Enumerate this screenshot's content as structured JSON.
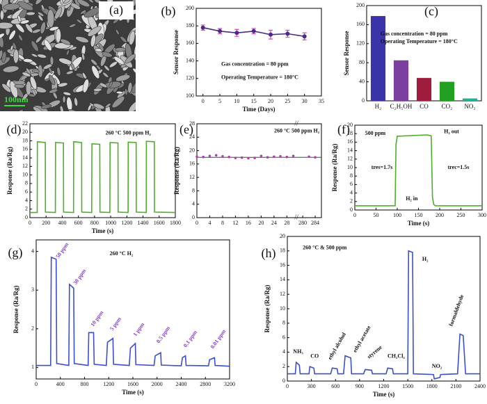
{
  "image": {
    "panel": "(a)",
    "scale_bar": "100nm"
  },
  "chart_data": [
    {
      "type": "line",
      "panel": "(b)",
      "x_label": "Time (Days)",
      "y_label": "Sensor Response",
      "x": [
        0,
        5,
        10,
        15,
        20,
        25,
        30
      ],
      "values": [
        178,
        174,
        172,
        174,
        170,
        171,
        168
      ],
      "errors": [
        3,
        3,
        4,
        3,
        5,
        4,
        4
      ],
      "color": "#4b2a8c",
      "error_color": "#e040c0",
      "markers": true,
      "xlim": [
        -2,
        35
      ],
      "xticks": [
        0,
        5,
        10,
        15,
        20,
        25,
        30,
        35
      ],
      "ylim": [
        100,
        200
      ],
      "yticks": [
        100,
        120,
        140,
        160,
        180,
        200
      ],
      "annotations": [
        "Gas concentration = 80 ppm",
        "Operating Temperature = 180°C"
      ]
    },
    {
      "type": "bar",
      "panel": "(c)",
      "y_label": "Sensor Response",
      "categories": [
        "H₂",
        "C₂H₅OH",
        "CO",
        "CO₂",
        "NO₂"
      ],
      "values": [
        178,
        85,
        48,
        40,
        5
      ],
      "colors": [
        "#3a34a8",
        "#7b3fa0",
        "#a01c3c",
        "#22a022",
        "#1fb394"
      ],
      "ylim": [
        0,
        200
      ],
      "yticks": [
        0,
        40,
        80,
        120,
        160,
        200
      ],
      "annotations": [
        "Gas concentration = 80 ppm",
        "Operating Temperature = 180°C"
      ]
    },
    {
      "type": "line",
      "panel": "(d)",
      "x_label": "Time (s)",
      "y_label": "Response (Ra/Rg)",
      "x": [
        0,
        90,
        92,
        190,
        192,
        315,
        317,
        415,
        417,
        540,
        542,
        640,
        642,
        765,
        767,
        865,
        867,
        990,
        992,
        1090,
        1092,
        1215,
        1217,
        1315,
        1317,
        1440,
        1442,
        1540,
        1542,
        1800
      ],
      "values": [
        1.2,
        1.2,
        17.8,
        17.6,
        1.3,
        1.2,
        17.6,
        17.5,
        1.3,
        1.2,
        17.8,
        17.6,
        1.3,
        1.2,
        17.3,
        17.2,
        1.3,
        1.2,
        17.6,
        17.5,
        1.3,
        1.2,
        17.7,
        17.6,
        1.3,
        1.2,
        17.9,
        17.8,
        1.3,
        1.2
      ],
      "color": "#4caf26",
      "xlim": [
        0,
        1800
      ],
      "xticks": [
        0,
        200,
        400,
        600,
        800,
        1000,
        1200,
        1400,
        1600,
        1800
      ],
      "ylim": [
        0,
        22
      ],
      "yticks": [
        0,
        2,
        4,
        6,
        8,
        10,
        12,
        14,
        16,
        18,
        20,
        22
      ],
      "annotations": [
        "260 °C 500 ppm H₂"
      ]
    },
    {
      "type": "scatter",
      "panel": "(e)",
      "y_label": "Response (Ra/Rg)",
      "x": [
        0,
        2,
        4,
        6,
        8,
        10,
        12,
        14,
        16,
        18,
        20,
        22,
        24,
        26,
        28,
        30,
        282,
        284
      ],
      "values": [
        18.2,
        18.1,
        18.4,
        18.6,
        18.3,
        18.1,
        17.8,
        17.9,
        17.7,
        17.8,
        18.4,
        18.0,
        18.2,
        18.3,
        18.1,
        18.4,
        18.2,
        18.0
      ],
      "color": "#b040b0",
      "reference_line": 18,
      "x_break": [
        31,
        278
      ],
      "xlim": [
        0,
        286
      ],
      "xticks": [
        0,
        4,
        8,
        12,
        16,
        20,
        24,
        28,
        280,
        284
      ],
      "ylim": [
        0,
        28
      ],
      "yticks": [
        0,
        4,
        8,
        12,
        16,
        20,
        24,
        28
      ],
      "annotations": [
        "260 °C 500 ppm H₂"
      ]
    },
    {
      "type": "line",
      "panel": "(f)",
      "x_label": "Time (s)",
      "y_label": "Response (Ra/Rg)",
      "x": [
        0,
        95,
        97,
        100,
        170,
        180,
        183,
        186,
        190,
        300
      ],
      "values": [
        1.0,
        1.0,
        15.5,
        17.4,
        17.7,
        17.5,
        3,
        1.3,
        1.0,
        1.0
      ],
      "color": "#4caf26",
      "xlim": [
        0,
        300
      ],
      "xticks": [
        0,
        50,
        100,
        150,
        200,
        250,
        300
      ],
      "ylim": [
        0,
        20
      ],
      "yticks": [
        0,
        2,
        4,
        6,
        8,
        10,
        12,
        14,
        16,
        18,
        20
      ],
      "annotations": [
        "500 ppm",
        "H₂ out",
        "H₂ in",
        "tres=1.7s",
        "trec=1.5s"
      ]
    },
    {
      "type": "line",
      "panel": "(g)",
      "x_label": "Time (s)",
      "y_label": "Response (Ra/Rg)",
      "x": [
        0,
        240,
        250,
        330,
        340,
        540,
        550,
        620,
        630,
        860,
        870,
        950,
        960,
        1160,
        1180,
        1270,
        1280,
        1540,
        1560,
        1640,
        1650,
        1950,
        1970,
        2060,
        2070,
        2400,
        2420,
        2470,
        2480,
        2850,
        2870,
        2950,
        2960,
        3200
      ],
      "values": [
        1.05,
        1.05,
        3.85,
        3.8,
        1.1,
        1.05,
        3.15,
        3.05,
        1.1,
        1.05,
        1.9,
        1.9,
        1.08,
        1.05,
        1.65,
        1.75,
        1.08,
        1.05,
        1.5,
        1.62,
        1.07,
        1.05,
        1.3,
        1.38,
        1.06,
        1.04,
        1.25,
        1.3,
        1.05,
        1.04,
        1.2,
        1.25,
        1.05,
        1.03
      ],
      "color": "#3a4ed0",
      "xlim": [
        0,
        3200
      ],
      "xticks": [
        0,
        400,
        800,
        1200,
        1600,
        2000,
        2400,
        2800,
        3200
      ],
      "ylim": [
        0.7,
        4.3
      ],
      "yticks": [
        1,
        2,
        3,
        4
      ],
      "annotations": [
        "260 °C  H₂",
        "50 ppm",
        "30 ppm",
        "10 ppm",
        "5 ppm",
        "1 ppm",
        "0.5 ppm",
        "0.1 ppm",
        "0.01 ppm"
      ]
    },
    {
      "type": "line",
      "panel": "(h)",
      "x_label": "Time (s)",
      "y_label": "Response (Ra/Rg)",
      "x": [
        0,
        100,
        110,
        150,
        160,
        270,
        280,
        330,
        340,
        540,
        560,
        620,
        630,
        700,
        720,
        790,
        800,
        950,
        970,
        1050,
        1060,
        1230,
        1250,
        1310,
        1320,
        1500,
        1510,
        1560,
        1570,
        1820,
        1830,
        1900,
        1910,
        2120,
        2150,
        2190,
        2220,
        2400
      ],
      "values": [
        1,
        1,
        2.6,
        2.2,
        1,
        1,
        2.0,
        1.8,
        1,
        1,
        1.8,
        1.7,
        1,
        1,
        3.5,
        3.2,
        1,
        1,
        1.6,
        1.5,
        1,
        1,
        1.8,
        1.7,
        1,
        1,
        18.0,
        17.8,
        1,
        0.9,
        0.3,
        0.5,
        0.9,
        1,
        6.5,
        6.3,
        1,
        1
      ],
      "color": "#3a4ed0",
      "xlim": [
        0,
        2400
      ],
      "xticks": [
        0,
        300,
        600,
        900,
        1200,
        1500,
        1800,
        2100,
        2400
      ],
      "ylim": [
        0,
        20
      ],
      "yticks": [
        0,
        2,
        4,
        6,
        8,
        10,
        12,
        14,
        16,
        18,
        20
      ],
      "annotations": [
        "260 °C & 500 ppm",
        "NH₃",
        "CO",
        "ethyl alcohol",
        "ethyl acetate",
        "styrene",
        "CH₂Cl₂",
        "H₂",
        "NO₂",
        "formaldehyde"
      ]
    }
  ]
}
